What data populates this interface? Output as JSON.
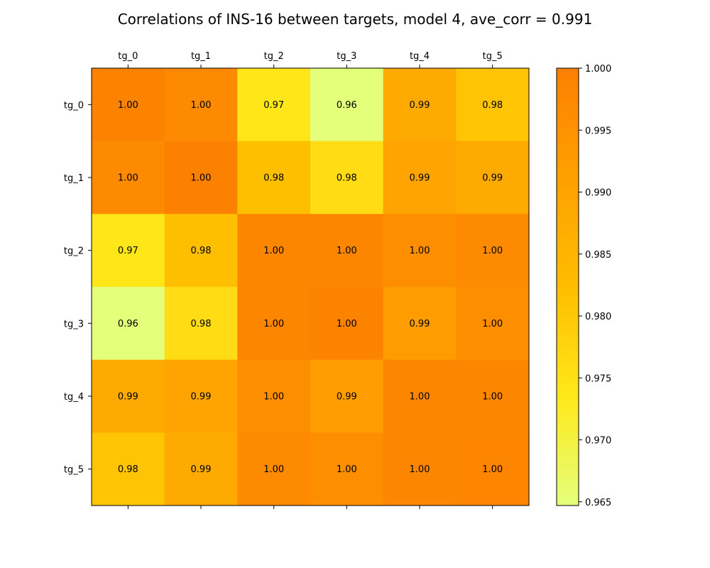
{
  "chart_data": {
    "type": "heatmap",
    "title": "Correlations of INS-16 between targets, model 4, ave_corr = 0.991",
    "x_labels": [
      "tg_0",
      "tg_1",
      "tg_2",
      "tg_3",
      "tg_4",
      "tg_5"
    ],
    "y_labels": [
      "tg_0",
      "tg_1",
      "tg_2",
      "tg_3",
      "tg_4",
      "tg_5"
    ],
    "x_axis_position": "top",
    "values": [
      [
        0.999,
        0.997,
        0.974,
        0.9645,
        0.988,
        0.981
      ],
      [
        0.997,
        0.9995,
        0.982,
        0.976,
        0.99,
        0.988
      ],
      [
        0.974,
        0.982,
        0.998,
        0.998,
        0.996,
        0.997
      ],
      [
        0.9645,
        0.976,
        0.998,
        0.999,
        0.992,
        0.996
      ],
      [
        0.988,
        0.99,
        0.996,
        0.992,
        0.998,
        0.998
      ],
      [
        0.981,
        0.988,
        0.997,
        0.996,
        0.998,
        0.9985
      ]
    ],
    "cell_labels": [
      [
        "1.00",
        "1.00",
        "0.97",
        "0.96",
        "0.99",
        "0.98"
      ],
      [
        "1.00",
        "1.00",
        "0.98",
        "0.98",
        "0.99",
        "0.99"
      ],
      [
        "0.97",
        "0.98",
        "1.00",
        "1.00",
        "1.00",
        "1.00"
      ],
      [
        "0.96",
        "0.98",
        "1.00",
        "1.00",
        "0.99",
        "1.00"
      ],
      [
        "0.99",
        "0.99",
        "1.00",
        "0.99",
        "1.00",
        "1.00"
      ],
      [
        "0.98",
        "0.99",
        "1.00",
        "1.00",
        "1.00",
        "1.00"
      ]
    ],
    "colorbar": {
      "min": 0.9647,
      "max": 1.0,
      "ticks": [
        0.965,
        0.97,
        0.975,
        0.98,
        0.985,
        0.99,
        0.995,
        1.0
      ],
      "tick_labels": [
        "0.965",
        "0.970",
        "0.975",
        "0.980",
        "0.985",
        "0.990",
        "0.995",
        "1.000"
      ]
    },
    "colormap": "Wistia",
    "grid": false
  }
}
